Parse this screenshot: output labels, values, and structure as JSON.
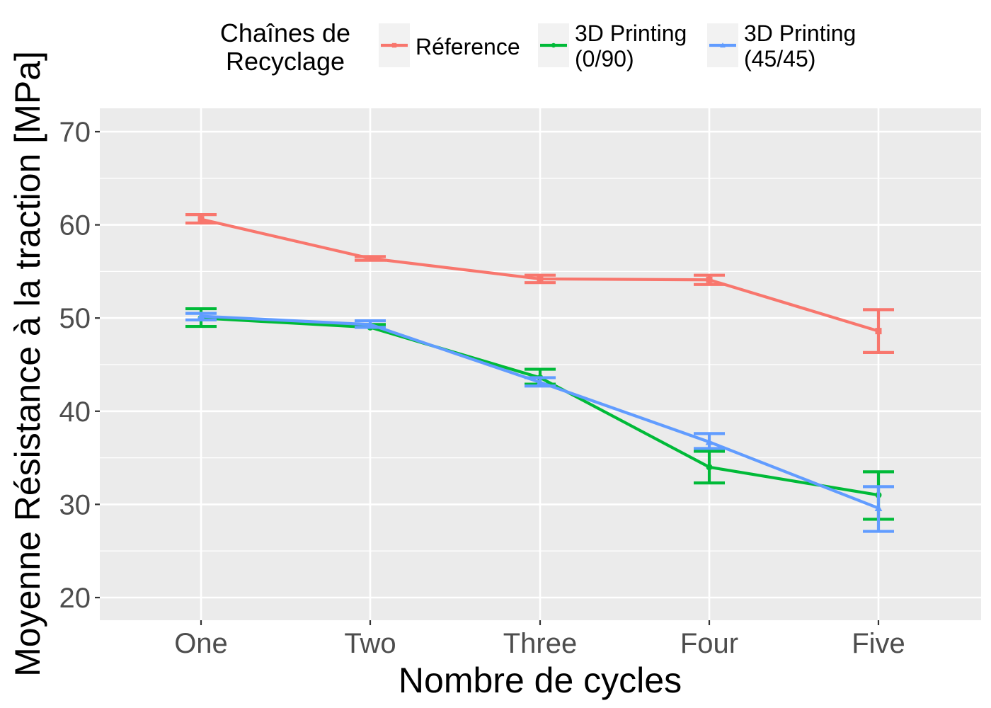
{
  "chart_data": {
    "type": "line",
    "xlabel": "Nombre de cycles",
    "ylabel": "Moyenne Résistance à la traction [MPa]",
    "categories": [
      "One",
      "Two",
      "Three",
      "Four",
      "Five"
    ],
    "yticks": [
      20,
      30,
      40,
      50,
      60,
      70
    ],
    "ylim": [
      17.5,
      72.5
    ],
    "grid": true,
    "legend_title": "Chaînes de\nRecyclage",
    "legend_position": "top",
    "series": [
      {
        "name": "Réference",
        "label_lines": [
          "Réference"
        ],
        "color": "#F8766D",
        "marker": "square",
        "values": [
          60.6,
          56.4,
          54.2,
          54.1,
          48.6
        ],
        "err_low": [
          60.2,
          56.2,
          53.8,
          53.6,
          46.3
        ],
        "err_high": [
          61.1,
          56.6,
          54.6,
          54.6,
          50.9
        ]
      },
      {
        "name": "3D Printing (0/90)",
        "label_lines": [
          "3D Printing",
          "(0/90)"
        ],
        "color": "#00BA38",
        "marker": "circle",
        "values": [
          50.0,
          49.0,
          43.6,
          34.0,
          31.0
        ],
        "err_low": [
          49.1,
          49.0,
          42.9,
          32.3,
          28.4
        ],
        "err_high": [
          51.0,
          49.3,
          44.5,
          35.7,
          33.5
        ]
      },
      {
        "name": "3D Printing (45/45)",
        "label_lines": [
          "3D Printing",
          "(45/45)"
        ],
        "color": "#619CFF",
        "marker": "triangle",
        "values": [
          50.2,
          49.3,
          43.1,
          36.7,
          29.6
        ],
        "err_low": [
          49.8,
          49.0,
          42.7,
          36.0,
          27.1
        ],
        "err_high": [
          50.5,
          49.7,
          43.6,
          37.6,
          31.9
        ]
      }
    ]
  }
}
